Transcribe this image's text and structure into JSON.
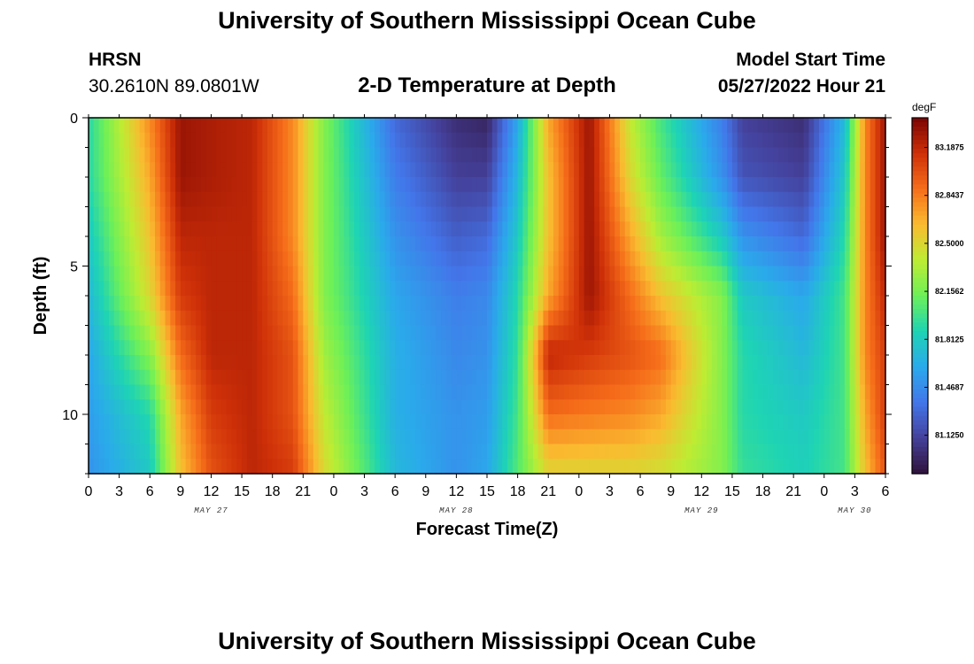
{
  "header": {
    "title": "University of Southern Mississippi Ocean Cube",
    "station": "HRSN",
    "coords": "30.2610N  89.0801W",
    "subtitle": "2-D Temperature at Depth",
    "start_label": "Model Start Time",
    "start_value": "05/27/2022 Hour 21"
  },
  "footer": {
    "title": "University of Southern Mississippi Ocean Cube"
  },
  "chart_data": {
    "type": "heatmap",
    "title": "2-D Temperature at Depth",
    "xlabel": "Forecast Time(Z)",
    "ylabel": "Depth (ft)",
    "x_tick_labels": [
      "0",
      "3",
      "6",
      "9",
      "12",
      "15",
      "18",
      "21",
      "0",
      "3",
      "6",
      "9",
      "12",
      "15",
      "18",
      "21",
      "0",
      "3",
      "6",
      "9",
      "12",
      "15",
      "18",
      "21",
      "0",
      "3",
      "6"
    ],
    "x_day_labels": [
      {
        "label": "MAY 27",
        "at_hour": 12
      },
      {
        "label": "MAY 28",
        "at_hour": 36
      },
      {
        "label": "MAY 29",
        "at_hour": 60
      },
      {
        "label": "MAY 30",
        "at_hour": 75
      }
    ],
    "x_range_hours": [
      0,
      78
    ],
    "y_ticks": [
      0,
      5,
      10
    ],
    "ylim": [
      0,
      12
    ],
    "y_inverted": true,
    "colorbar": {
      "unit": "degF",
      "labels": [
        "83.1875",
        "82.8437",
        "82.5000",
        "82.1562",
        "81.8125",
        "81.4687",
        "81.1250"
      ],
      "values": [
        83.1875,
        82.84375,
        82.5,
        82.15625,
        81.8125,
        81.46875,
        81.125
      ],
      "min": 80.85,
      "max": 83.4
    },
    "x_hours": [
      0,
      6,
      9,
      12,
      16,
      20,
      23,
      30,
      36,
      39,
      42,
      45,
      49,
      53,
      56,
      62,
      64,
      70,
      74,
      76,
      78
    ],
    "depths_ft": [
      0,
      2,
      4,
      6,
      8,
      10,
      12
    ],
    "values": [
      [
        81.9,
        82.8,
        83.3,
        83.25,
        83.2,
        82.8,
        82.2,
        81.3,
        81.0,
        80.95,
        81.6,
        82.7,
        83.3,
        82.4,
        82.0,
        81.4,
        81.1,
        81.0,
        81.7,
        82.8,
        83.3
      ],
      [
        81.9,
        82.7,
        83.3,
        83.25,
        83.2,
        82.8,
        82.2,
        81.4,
        81.1,
        81.1,
        81.7,
        82.6,
        83.3,
        82.5,
        82.1,
        81.5,
        81.2,
        81.1,
        81.8,
        82.8,
        83.3
      ],
      [
        81.8,
        82.6,
        83.2,
        83.2,
        83.2,
        82.8,
        82.2,
        81.5,
        81.25,
        81.3,
        81.8,
        82.6,
        83.3,
        82.7,
        82.3,
        81.8,
        81.5,
        81.3,
        81.9,
        82.8,
        83.3
      ],
      [
        81.7,
        82.5,
        83.1,
        83.2,
        83.2,
        82.9,
        82.2,
        81.6,
        81.4,
        81.45,
        81.9,
        82.7,
        83.3,
        82.9,
        82.6,
        82.2,
        81.8,
        81.6,
        82.0,
        82.8,
        83.2
      ],
      [
        81.6,
        82.2,
        82.9,
        83.2,
        83.2,
        83.0,
        82.3,
        81.65,
        81.45,
        81.5,
        81.95,
        83.2,
        83.1,
        83.0,
        82.9,
        82.2,
        81.9,
        81.7,
        82.0,
        82.8,
        83.1
      ],
      [
        81.55,
        81.9,
        82.7,
        83.1,
        83.2,
        83.0,
        82.4,
        81.65,
        81.5,
        81.55,
        82.0,
        82.9,
        82.85,
        82.8,
        82.7,
        82.2,
        81.9,
        81.8,
        82.0,
        82.7,
        83.1
      ],
      [
        81.5,
        81.8,
        82.6,
        83.0,
        83.2,
        83.1,
        82.5,
        81.7,
        81.5,
        81.6,
        82.05,
        82.5,
        82.5,
        82.5,
        82.45,
        82.2,
        81.95,
        81.85,
        82.0,
        82.6,
        83.0
      ]
    ]
  }
}
